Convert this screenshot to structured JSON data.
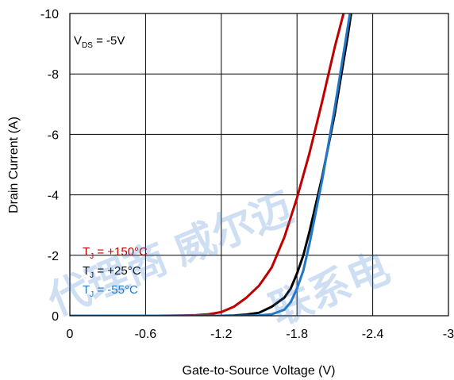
{
  "chart_data": {
    "type": "line",
    "xlabel": "Gate-to-Source Voltage (V)",
    "ylabel": "Drain Current (A)",
    "xlim": [
      0,
      -3
    ],
    "ylim": [
      0,
      -10
    ],
    "x_ticks": [
      "0",
      "-0.6",
      "-1.2",
      "-1.8",
      "-2.4",
      "-3"
    ],
    "x_tick_values": [
      0,
      -0.6,
      -1.2,
      -1.8,
      -2.4,
      -3
    ],
    "y_ticks": [
      "0",
      "-2",
      "-4",
      "-6",
      "-8",
      "-10"
    ],
    "y_tick_values": [
      0,
      -2,
      -4,
      -6,
      -8,
      -10
    ],
    "grid": true,
    "annotation": {
      "main": "V",
      "sub": "DS",
      "rest": " = -5V"
    },
    "series": [
      {
        "name": "TJ = +150°C",
        "label_main": "T",
        "label_sub": "J",
        "label_rest": " = +150°C",
        "color": "#c00000",
        "x": [
          -0.7,
          -0.9,
          -1.0,
          -1.1,
          -1.2,
          -1.3,
          -1.4,
          -1.5,
          -1.55,
          -1.6,
          -1.7,
          -1.8,
          -1.9,
          -2.0,
          -2.1,
          -2.2,
          -2.22
        ],
        "y": [
          0,
          -0.01,
          -0.02,
          -0.05,
          -0.12,
          -0.3,
          -0.6,
          -1.0,
          -1.3,
          -1.6,
          -2.6,
          -3.9,
          -5.4,
          -7.1,
          -8.9,
          -10.5,
          -10.8
        ]
      },
      {
        "name": "TJ = +25°C",
        "label_main": "T",
        "label_sub": "J",
        "label_rest": " = +25°C",
        "color": "#000000",
        "x": [
          -1.2,
          -1.3,
          -1.4,
          -1.5,
          -1.6,
          -1.7,
          -1.75,
          -1.8,
          -1.85,
          -1.9,
          -2.0,
          -2.1,
          -2.2,
          -2.25
        ],
        "y": [
          0,
          -0.01,
          -0.04,
          -0.1,
          -0.3,
          -0.6,
          -0.9,
          -1.4,
          -2.0,
          -2.8,
          -4.6,
          -6.7,
          -9.2,
          -10.6
        ]
      },
      {
        "name": "TJ = -55°C",
        "label_main": "T",
        "label_sub": "J",
        "label_rest": " = -55°C",
        "color": "#1f78c8",
        "x": [
          -1.4,
          -1.5,
          -1.6,
          -1.7,
          -1.75,
          -1.8,
          -1.85,
          -1.9,
          -2.0,
          -2.1,
          -2.2,
          -2.25
        ],
        "y": [
          0,
          -0.01,
          -0.05,
          -0.2,
          -0.45,
          -0.9,
          -1.5,
          -2.4,
          -4.5,
          -6.9,
          -9.5,
          -10.8
        ]
      }
    ]
  },
  "watermark": {
    "line1": "代理商 威尔迈",
    "line2": "联系电"
  }
}
